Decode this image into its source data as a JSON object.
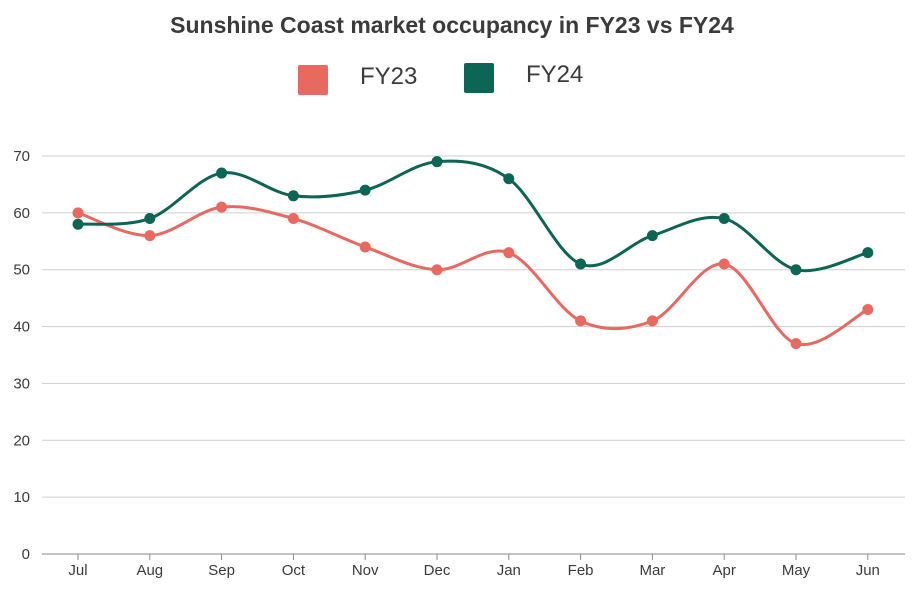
{
  "chart_data": {
    "type": "line",
    "title": "Sunshine Coast market occupancy in FY23 vs FY24",
    "categories": [
      "Jul",
      "Aug",
      "Sep",
      "Oct",
      "Nov",
      "Dec",
      "Jan",
      "Feb",
      "Mar",
      "Apr",
      "May",
      "Jun"
    ],
    "series": [
      {
        "name": "FY23",
        "color": "#e8695f",
        "values": [
          60,
          56,
          61,
          59,
          54,
          50,
          53,
          41,
          41,
          51,
          37,
          43
        ]
      },
      {
        "name": "FY24",
        "color": "#0d6655",
        "values": [
          58,
          59,
          67,
          63,
          64,
          69,
          66,
          51,
          56,
          59,
          50,
          53
        ]
      }
    ],
    "y_ticks": [
      "0",
      "10",
      "20",
      "30",
      "40",
      "50",
      "60",
      "70"
    ],
    "ylim": [
      0,
      70
    ],
    "xlabel": "",
    "ylabel": "",
    "grid": true,
    "legend_position": "top-center",
    "smooth": true,
    "markers": true
  }
}
